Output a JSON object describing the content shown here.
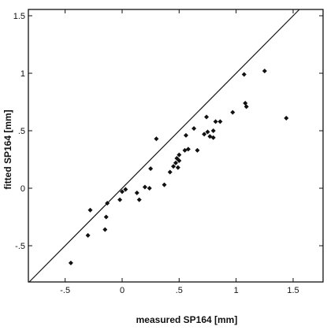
{
  "chart_data": {
    "type": "scatter",
    "xlabel": "measured SP164 [mm]",
    "ylabel": "fitted SP164 [mm]",
    "xlim": [
      -0.8,
      1.5
    ],
    "ylim": [
      -0.8,
      1.5
    ],
    "x_ticks": [
      "-.5",
      "0",
      ".5",
      "1",
      "1.5"
    ],
    "y_ticks": [
      "-.5",
      "0",
      ".5",
      "1",
      "1.5"
    ],
    "x_tick_values": [
      -0.5,
      0,
      0.5,
      1,
      1.5
    ],
    "y_tick_values": [
      -0.5,
      0,
      0.5,
      1,
      1.5
    ],
    "reference_line": "y = x",
    "grid": false,
    "colors": {
      "points": "#111111",
      "line": "#111111",
      "axes": "#111111"
    },
    "points": [
      {
        "x": -0.45,
        "y": -0.65
      },
      {
        "x": -0.3,
        "y": -0.41
      },
      {
        "x": -0.28,
        "y": -0.19
      },
      {
        "x": -0.15,
        "y": -0.36
      },
      {
        "x": -0.14,
        "y": -0.25
      },
      {
        "x": -0.13,
        "y": -0.13
      },
      {
        "x": -0.02,
        "y": -0.1
      },
      {
        "x": 0.0,
        "y": -0.03
      },
      {
        "x": 0.03,
        "y": -0.01
      },
      {
        "x": 0.13,
        "y": -0.04
      },
      {
        "x": 0.15,
        "y": -0.1
      },
      {
        "x": 0.2,
        "y": 0.01
      },
      {
        "x": 0.24,
        "y": 0.0
      },
      {
        "x": 0.25,
        "y": 0.17
      },
      {
        "x": 0.3,
        "y": 0.43
      },
      {
        "x": 0.37,
        "y": 0.03
      },
      {
        "x": 0.42,
        "y": 0.14
      },
      {
        "x": 0.45,
        "y": 0.19
      },
      {
        "x": 0.47,
        "y": 0.22
      },
      {
        "x": 0.48,
        "y": 0.26
      },
      {
        "x": 0.49,
        "y": 0.18
      },
      {
        "x": 0.5,
        "y": 0.24
      },
      {
        "x": 0.5,
        "y": 0.29
      },
      {
        "x": 0.55,
        "y": 0.33
      },
      {
        "x": 0.56,
        "y": 0.46
      },
      {
        "x": 0.58,
        "y": 0.34
      },
      {
        "x": 0.63,
        "y": 0.52
      },
      {
        "x": 0.66,
        "y": 0.33
      },
      {
        "x": 0.72,
        "y": 0.47
      },
      {
        "x": 0.74,
        "y": 0.62
      },
      {
        "x": 0.75,
        "y": 0.49
      },
      {
        "x": 0.77,
        "y": 0.45
      },
      {
        "x": 0.8,
        "y": 0.5
      },
      {
        "x": 0.8,
        "y": 0.44
      },
      {
        "x": 0.82,
        "y": 0.58
      },
      {
        "x": 0.86,
        "y": 0.58
      },
      {
        "x": 0.97,
        "y": 0.66
      },
      {
        "x": 1.07,
        "y": 0.99
      },
      {
        "x": 1.08,
        "y": 0.74
      },
      {
        "x": 1.09,
        "y": 0.71
      },
      {
        "x": 1.25,
        "y": 1.02
      },
      {
        "x": 1.44,
        "y": 0.61
      }
    ]
  }
}
